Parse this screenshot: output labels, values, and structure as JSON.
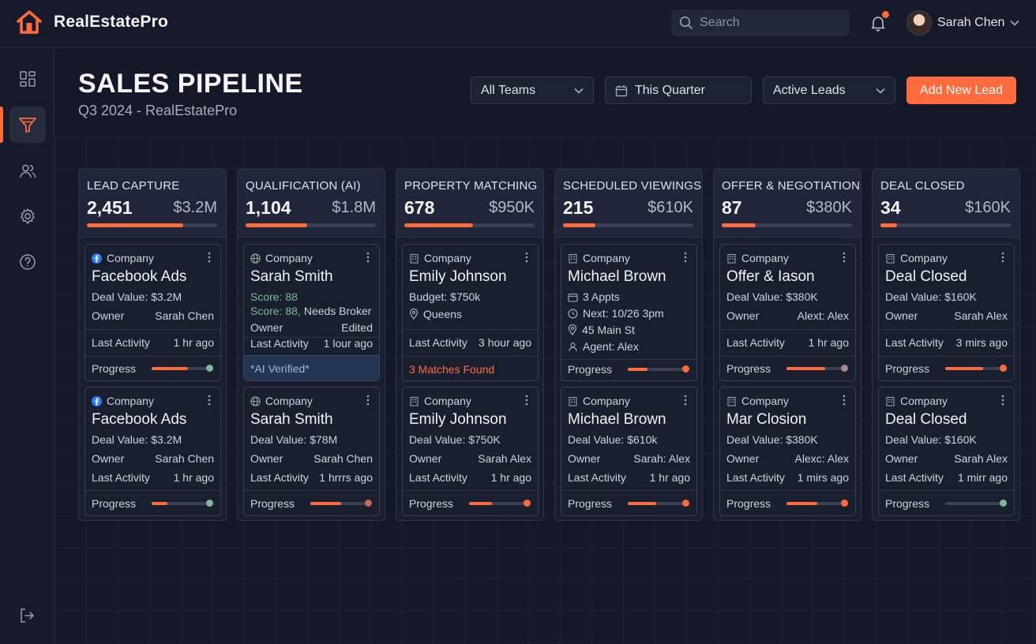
{
  "app": {
    "name": "RealEstatePro",
    "search_placeholder": "Search",
    "user_name": "Sarah Chen"
  },
  "colors": {
    "accent": "#ff6b3d",
    "background": "#141828",
    "card": "#1a1f30",
    "success": "#7fb894"
  },
  "sidebar": {
    "items": [
      {
        "icon": "dashboard-icon"
      },
      {
        "icon": "funnel-icon",
        "active": true
      },
      {
        "icon": "users-icon"
      },
      {
        "icon": "gear-icon"
      },
      {
        "icon": "help-icon"
      }
    ],
    "footer_icon": "logout-icon"
  },
  "header": {
    "title": "SALES PIPELINE",
    "subtitle": "Q3 2024 - RealEstatePro",
    "filters": {
      "team": "All Teams",
      "period": "This Quarter",
      "status": "Active Leads"
    },
    "add_button": "Add New Lead"
  },
  "columns": [
    {
      "title": "LEAD CAPTURE",
      "count": "2,451",
      "value": "$3.2M",
      "progress": 0.74,
      "cards": [
        {
          "source": "facebook",
          "type": "Company",
          "name": "Facebook Ads",
          "deal": "Deal Value: $3.2M",
          "owner_label": "Owner",
          "owner": "Sarah Chen",
          "activity_label": "Last Activity",
          "activity": "1 hr ago",
          "progress_label": "Progress",
          "progress": 0.65,
          "status": "green"
        },
        {
          "source": "facebook",
          "type": "Company",
          "name": "Facebook Ads",
          "deal": "Deal Value: $3.2M",
          "owner_label": "Owner",
          "owner": "Sarah Chen",
          "activity_label": "Last Activity",
          "activity": "1 hr ago",
          "progress_label": "Progress",
          "progress": 0.28,
          "status": "green"
        }
      ]
    },
    {
      "title": "QUALIFICATION (AI)",
      "count": "1,104",
      "value": "$1.8M",
      "progress": 0.47,
      "cards": [
        {
          "source": "ai",
          "type": "Company",
          "name": "Sarah Smith",
          "score1": "Score: 88",
          "score2_value": "Score: 88,",
          "score2_note": "Needs Broker",
          "owner_label": "Owner",
          "owner": "Edited",
          "activity_label": "Last Activity",
          "activity": "1 lour ago",
          "verified": "*AI Verified*"
        },
        {
          "source": "ai",
          "type": "Company",
          "name": "Sarah Smith",
          "deal": "Deal Value: $78M",
          "owner_label": "Owner",
          "owner": "Sarah Chen",
          "activity_label": "Last Activity",
          "activity": "1 hrrrs ago",
          "progress_label": "Progress",
          "progress": 0.55,
          "status": "orange-dim"
        }
      ]
    },
    {
      "title": "PROPERTY MATCHING",
      "count": "678",
      "value": "$950K",
      "progress": 0.53,
      "cards": [
        {
          "source": "building",
          "type": "Company",
          "name": "Emily Johnson",
          "budget": "Budget: $750k",
          "location": "Queens",
          "activity_label": "Last Activity",
          "activity": "3 hour ago",
          "matches": "3 Matches Found"
        },
        {
          "source": "building",
          "type": "Company",
          "name": "Emily Johnson",
          "deal": "Deal Value: $750K",
          "owner_label": "Owner",
          "owner": "Sarah Alex",
          "activity_label": "Last Activity",
          "activity": "1 hr ago",
          "progress_label": "Progress",
          "progress": 0.42,
          "status": "orange"
        }
      ]
    },
    {
      "title": "SCHEDULED VIEWINGS",
      "count": "215",
      "value": "$610K",
      "progress": 0.25,
      "cards": [
        {
          "source": "building",
          "type": "Company",
          "name": "Michael Brown",
          "appts": "3 Appts",
          "next": "Next: 10/26 3pm",
          "address": "45 Main St",
          "agent": "Agent: Alex",
          "progress_label": "Progress",
          "progress": 0.35,
          "status": "orange"
        },
        {
          "source": "building",
          "type": "Company",
          "name": "Michael Brown",
          "deal": "Deal Value: $610k",
          "owner_label": "Owner",
          "owner": "Sarah: Alex",
          "activity_label": "Last Activity",
          "activity": "1 hr ago",
          "progress_label": "Progress",
          "progress": 0.52,
          "status": "orange"
        }
      ]
    },
    {
      "title": "OFFER & NEGOTIATION",
      "count": "87",
      "value": "$380K",
      "progress": 0.26,
      "cards": [
        {
          "source": "building",
          "type": "Company",
          "name": "Offer & Iason",
          "deal": "Deal Value: $380K",
          "owner_label": "Owner",
          "owner": "Alext: Alex",
          "activity_label": "Last Activity",
          "activity": "1 hr ago",
          "progress_label": "Progress",
          "progress": 0.7,
          "status": "mauve"
        },
        {
          "source": "building",
          "type": "Company",
          "name": "Mar Closion",
          "deal": "Deal Value: $380K",
          "owner_label": "Owner",
          "owner": "Alexc: Alex",
          "activity_label": "Last Activity",
          "activity": "1 mirs ago",
          "progress_label": "Progress",
          "progress": 0.55,
          "status": "orange"
        }
      ]
    },
    {
      "title": "DEAL CLOSED",
      "count": "34",
      "value": "$160K",
      "progress": 0.13,
      "cards": [
        {
          "source": "building",
          "type": "Company",
          "name": "Deal Closed",
          "deal": "Deal Value: $160K",
          "owner_label": "Owner",
          "owner": "Sarah Alex",
          "activity_label": "Last Activity",
          "activity": "3 mirs ago",
          "progress_label": "Progress",
          "progress": 0.68,
          "status": "orange"
        },
        {
          "source": "building",
          "type": "Company",
          "name": "Deal Closed",
          "deal": "Deal Value: $160K",
          "owner_label": "Owner",
          "owner": "Sarah Alex",
          "activity_label": "Last Activity",
          "activity": "1 mirr ago",
          "progress_label": "Progress",
          "progress": 0.0,
          "status": "green"
        }
      ]
    }
  ]
}
